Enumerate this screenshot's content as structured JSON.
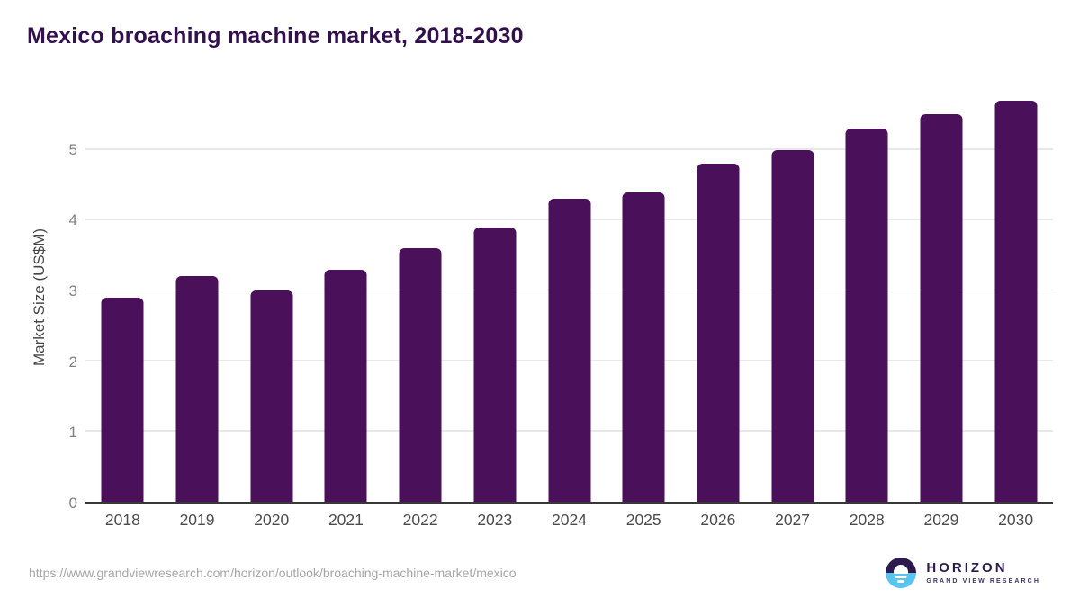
{
  "page": {
    "title": "Mexico broaching machine market, 2018-2030",
    "footer_url": "https://www.grandviewresearch.com/horizon/outlook/broaching-machine-market/mexico"
  },
  "logo": {
    "name": "HORIZON",
    "subtitle": "GRAND VIEW RESEARCH"
  },
  "chart_data": {
    "type": "bar",
    "title": "Mexico broaching machine market, 2018-2030",
    "categories": [
      "2018",
      "2019",
      "2020",
      "2021",
      "2022",
      "2023",
      "2024",
      "2025",
      "2026",
      "2027",
      "2028",
      "2029",
      "2030"
    ],
    "values": [
      2.9,
      3.2,
      3.0,
      3.3,
      3.6,
      3.9,
      4.3,
      4.4,
      4.8,
      5.0,
      5.3,
      5.5,
      5.7
    ],
    "xlabel": "",
    "ylabel": "Market Size (US$M)",
    "yticks": [
      0,
      1,
      2,
      3,
      4,
      5
    ],
    "ylim": [
      0,
      5.85
    ],
    "grid": "horizontal",
    "legend": "none",
    "bar_color": "#4a1059"
  },
  "colors": {
    "title": "#31104d",
    "bar": "#4a1059",
    "gridline": "#e8e8e8",
    "axis_line": "#383838",
    "y_tick_label": "#828282",
    "x_tick_label": "#4b4b4b",
    "url": "#a6a6a6",
    "logo_dark": "#2e1b4e",
    "logo_blue": "#59c4f0"
  }
}
